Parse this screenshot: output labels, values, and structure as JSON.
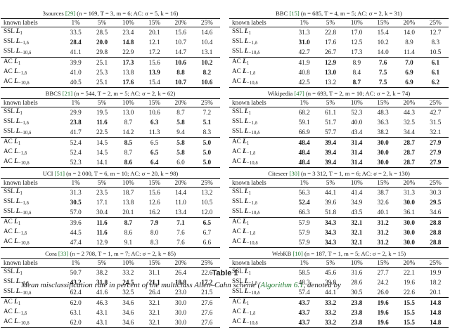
{
  "headers": [
    "known labels",
    "1%",
    "5%",
    "10%",
    "15%",
    "20%",
    "25%"
  ],
  "panels": [
    {
      "name_pre": "3sources ",
      "cite": "[29]",
      "params": " (n = 169, T = 3, m = 6; AC: σ = 5, k = 16)",
      "rows": [
        {
          "method": "SSL L",
          "sub": "1",
          "vals": [
            "33.5",
            "28.5",
            "23.4",
            "20.1",
            "15.6",
            "14.6"
          ]
        },
        {
          "method": "SSL L",
          "sub": "−1,δ",
          "vals": [
            "28.4",
            "20.0",
            "14.8",
            "12.1",
            "10.7",
            "10.4"
          ]
        },
        {
          "method": "SSL L",
          "sub": "−10,δ",
          "vals": [
            "41.1",
            "29.8",
            "22.9",
            "17.2",
            "14.7",
            "13.1"
          ]
        },
        {
          "method": "AC L",
          "sub": "1",
          "vals": [
            "39.9",
            "25.1",
            "17.3",
            "15.6",
            "10.6",
            "10.2"
          ]
        },
        {
          "method": "AC L",
          "sub": "−1,δ",
          "vals": [
            "41.0",
            "25.3",
            "13.8",
            "13.9",
            "8.8",
            "8.2"
          ]
        },
        {
          "method": "AC L",
          "sub": "−10,δ",
          "vals": [
            "40.5",
            "25.1",
            "17.6",
            "15.4",
            "10.7",
            "10.6"
          ]
        }
      ]
    },
    {
      "name_pre": "BBC ",
      "cite": "[15]",
      "params": " (n = 685, T = 4, m = 5; AC: σ = 2, k = 31)",
      "rows": [
        {
          "method": "SSL L",
          "sub": "1",
          "vals": [
            "31.3",
            "22.8",
            "17.0",
            "15.4",
            "14.0",
            "12.7"
          ]
        },
        {
          "method": "SSL L",
          "sub": "−1,δ",
          "vals": [
            "31.0",
            "17.6",
            "12.5",
            "10.2",
            "8.9",
            "8.3"
          ]
        },
        {
          "method": "SSL L",
          "sub": "−10,δ",
          "vals": [
            "42.7",
            "26.7",
            "17.3",
            "14.0",
            "11.4",
            "10.5"
          ]
        },
        {
          "method": "AC L",
          "sub": "1",
          "vals": [
            "41.9",
            "12.9",
            "8.9",
            "7.6",
            "7.0",
            "6.1"
          ]
        },
        {
          "method": "AC L",
          "sub": "−1,δ",
          "vals": [
            "40.8",
            "13.0",
            "8.4",
            "7.5",
            "6.9",
            "6.1"
          ]
        },
        {
          "method": "AC L",
          "sub": "−10,δ",
          "vals": [
            "42.5",
            "13.2",
            "8.7",
            "7.5",
            "6.9",
            "6.2"
          ]
        }
      ]
    },
    {
      "name_pre": "BBCS ",
      "cite": "[21]",
      "params": " (n = 544, T = 2, m = 5; AC: σ = 2, k = 62)",
      "rows": [
        {
          "method": "SSL L",
          "sub": "1",
          "vals": [
            "29.9",
            "19.5",
            "13.0",
            "10.6",
            "8.7",
            "7.2"
          ]
        },
        {
          "method": "SSL L",
          "sub": "−1,δ",
          "vals": [
            "23.8",
            "11.6",
            "8.7",
            "6.3",
            "5.8",
            "5.1"
          ]
        },
        {
          "method": "SSL L",
          "sub": "−10,δ",
          "vals": [
            "41.7",
            "22.5",
            "14.2",
            "11.3",
            "9.4",
            "8.3"
          ]
        },
        {
          "method": "AC L",
          "sub": "1",
          "vals": [
            "52.4",
            "14.5",
            "8.5",
            "6.5",
            "5.8",
            "5.0"
          ]
        },
        {
          "method": "AC L",
          "sub": "−1,δ",
          "vals": [
            "52.4",
            "14.5",
            "8.7",
            "6.5",
            "5.8",
            "5.0"
          ]
        },
        {
          "method": "AC L",
          "sub": "−10,δ",
          "vals": [
            "52.3",
            "14.1",
            "8.6",
            "6.4",
            "6.0",
            "5.0"
          ]
        }
      ]
    },
    {
      "name_pre": "Wikipedia ",
      "cite": "[47]",
      "params": " (n = 693, T = 2, m = 10; AC: σ = 2, k = 74)",
      "rows": [
        {
          "method": "SSL L",
          "sub": "1",
          "vals": [
            "68.2",
            "61.1",
            "52.3",
            "48.3",
            "44.3",
            "42.7"
          ]
        },
        {
          "method": "SSL L",
          "sub": "−1,δ",
          "vals": [
            "59.1",
            "51.7",
            "40.0",
            "36.3",
            "32.5",
            "31.5"
          ]
        },
        {
          "method": "SSL L",
          "sub": "−10,δ",
          "vals": [
            "66.9",
            "57.7",
            "43.4",
            "38.2",
            "34.4",
            "32.1"
          ]
        },
        {
          "method": "AC L",
          "sub": "1",
          "vals": [
            "48.4",
            "39.4",
            "31.4",
            "30.0",
            "28.7",
            "27.9"
          ]
        },
        {
          "method": "AC L",
          "sub": "−1,δ",
          "vals": [
            "48.4",
            "39.4",
            "31.4",
            "30.0",
            "28.7",
            "27.9"
          ]
        },
        {
          "method": "AC L",
          "sub": "−10,δ",
          "vals": [
            "48.4",
            "39.4",
            "31.4",
            "30.0",
            "28.7",
            "27.9"
          ]
        }
      ]
    },
    {
      "name_pre": "UCI ",
      "cite": "[51]",
      "params": " (n = 2 000, T = 6, m = 10; AC: σ = 20, k = 98)",
      "rows": [
        {
          "method": "SSL L",
          "sub": "1",
          "vals": [
            "31.3",
            "23.5",
            "18.7",
            "15.6",
            "14.4",
            "13.2"
          ]
        },
        {
          "method": "SSL L",
          "sub": "−1,δ",
          "vals": [
            "30.5",
            "17.1",
            "13.8",
            "12.6",
            "11.0",
            "10.5"
          ]
        },
        {
          "method": "SSL L",
          "sub": "−10,δ",
          "vals": [
            "57.0",
            "30.4",
            "20.1",
            "16.2",
            "13.4",
            "12.0"
          ]
        },
        {
          "method": "AC L",
          "sub": "1",
          "vals": [
            "39.6",
            "11.6",
            "8.7",
            "7.9",
            "7.1",
            "6.5"
          ]
        },
        {
          "method": "AC L",
          "sub": "−1,δ",
          "vals": [
            "44.5",
            "11.6",
            "8.6",
            "8.0",
            "7.6",
            "6.7"
          ]
        },
        {
          "method": "AC L",
          "sub": "−10,δ",
          "vals": [
            "47.4",
            "12.9",
            "9.1",
            "8.3",
            "7.6",
            "6.6"
          ]
        }
      ]
    },
    {
      "name_pre": "Citeseer ",
      "cite": "[30]",
      "params": " (n = 3 312, T = 1, m = 6; AC: σ = 2, k = 130)",
      "rows": [
        {
          "method": "SSL L",
          "sub": "1",
          "vals": [
            "56.3",
            "44.1",
            "41.4",
            "38.7",
            "31.3",
            "30.3"
          ]
        },
        {
          "method": "SSL L",
          "sub": "−1,δ",
          "vals": [
            "52.4",
            "39.6",
            "34.9",
            "32.6",
            "30.0",
            "29.5"
          ]
        },
        {
          "method": "SSL L",
          "sub": "−10,δ",
          "vals": [
            "66.3",
            "51.8",
            "43.5",
            "40.1",
            "36.1",
            "34.6"
          ]
        },
        {
          "method": "AC L",
          "sub": "1",
          "vals": [
            "57.9",
            "34.3",
            "32.1",
            "31.2",
            "30.0",
            "28.8"
          ]
        },
        {
          "method": "AC L",
          "sub": "−1,δ",
          "vals": [
            "57.9",
            "34.3",
            "32.1",
            "31.2",
            "30.0",
            "28.8"
          ]
        },
        {
          "method": "AC L",
          "sub": "−10,δ",
          "vals": [
            "57.9",
            "34.3",
            "32.1",
            "31.2",
            "30.0",
            "28.8"
          ]
        }
      ]
    },
    {
      "name_pre": "Cora ",
      "cite": "[33]",
      "params": " (n = 2 708, T = 1, m = 7; AC: σ = 2, k = 85)",
      "rows": [
        {
          "method": "SSL L",
          "sub": "1",
          "vals": [
            "50.7",
            "38.2",
            "33.2",
            "31.1",
            "26.4",
            "22.6"
          ]
        },
        {
          "method": "SSL L",
          "sub": "−1,δ",
          "vals": [
            "43.2",
            "31.8",
            "24.5",
            "21.1",
            "18.8",
            "17.2"
          ]
        },
        {
          "method": "SSL L",
          "sub": "−10,δ",
          "vals": [
            "62.4",
            "41.6",
            "32.5",
            "26.4",
            "23.0",
            "21.5"
          ]
        },
        {
          "method": "AC L",
          "sub": "1",
          "vals": [
            "62.0",
            "46.3",
            "34.6",
            "32.1",
            "30.0",
            "27.6"
          ]
        },
        {
          "method": "AC L",
          "sub": "−1,δ",
          "vals": [
            "63.1",
            "43.1",
            "34.6",
            "32.1",
            "30.0",
            "27.6"
          ]
        },
        {
          "method": "AC L",
          "sub": "−10,δ",
          "vals": [
            "62.0",
            "43.1",
            "34.6",
            "32.1",
            "30.0",
            "27.6"
          ]
        }
      ]
    },
    {
      "name_pre": "WebKB ",
      "cite": "[10]",
      "params": " (n = 187, T = 1, m = 5; AC: σ = 2, k = 15)",
      "rows": [
        {
          "method": "SSL L",
          "sub": "1",
          "vals": [
            "58.5",
            "45.6",
            "31.6",
            "27.7",
            "22.1",
            "19.9"
          ]
        },
        {
          "method": "SSL L",
          "sub": "−1,δ",
          "vals": [
            "48.3",
            "39.8",
            "28.6",
            "24.2",
            "19.6",
            "18.2"
          ]
        },
        {
          "method": "SSL L",
          "sub": "−10,δ",
          "vals": [
            "57.4",
            "44.1",
            "30.5",
            "26.0",
            "22.6",
            "20.1"
          ]
        },
        {
          "method": "AC L",
          "sub": "1",
          "vals": [
            "43.7",
            "33.2",
            "23.8",
            "19.6",
            "15.5",
            "14.8"
          ]
        },
        {
          "method": "AC L",
          "sub": "−1,δ",
          "vals": [
            "43.7",
            "33.2",
            "23.8",
            "19.6",
            "15.5",
            "14.8"
          ]
        },
        {
          "method": "AC L",
          "sub": "−10,δ",
          "vals": [
            "43.7",
            "33.2",
            "23.8",
            "19.6",
            "15.5",
            "14.8"
          ]
        }
      ]
    }
  ],
  "table_title": "Table 1",
  "description_start": "Mean misclassification rate in percent of the multiclass Allen–Cahn scheme (",
  "description_link": "Algorithm 6.1",
  "description_end": ", denoted by"
}
